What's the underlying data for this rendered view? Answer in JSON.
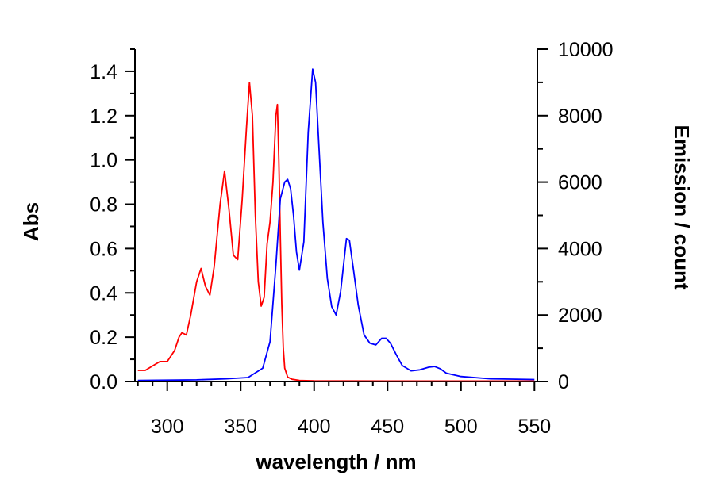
{
  "chart_data": {
    "type": "line",
    "xlabel": "wavelength / nm",
    "ylabel_left": "Abs",
    "ylabel_right": "Emission / count",
    "xlim": [
      278,
      552
    ],
    "ylim_left": [
      0,
      1.5
    ],
    "ylim_right": [
      0,
      10000
    ],
    "x_ticks": [
      "300",
      "350",
      "400",
      "450",
      "500",
      "550"
    ],
    "y_left_ticks": [
      "0.0",
      "0.2",
      "0.4",
      "0.6",
      "0.8",
      "1.0",
      "1.2",
      "1.4"
    ],
    "y_right_ticks": [
      "0",
      "2000",
      "4000",
      "6000",
      "8000",
      "10000"
    ],
    "grid": false,
    "series": [
      {
        "axis": "left",
        "color": "#ff0000",
        "x": [
          280,
          285,
          290,
          295,
          300,
          305,
          308,
          310,
          313,
          316,
          320,
          323,
          326,
          329,
          332,
          336,
          339,
          342,
          345,
          348,
          351,
          354,
          356,
          358,
          360,
          362,
          364,
          366,
          368,
          370,
          372,
          374,
          375,
          376,
          377,
          378,
          379,
          380,
          382,
          385,
          390,
          400,
          450,
          500,
          550
        ],
        "y": [
          0.05,
          0.05,
          0.07,
          0.09,
          0.09,
          0.14,
          0.2,
          0.22,
          0.21,
          0.3,
          0.45,
          0.51,
          0.43,
          0.39,
          0.52,
          0.8,
          0.95,
          0.78,
          0.57,
          0.55,
          0.82,
          1.15,
          1.35,
          1.2,
          0.75,
          0.45,
          0.34,
          0.38,
          0.62,
          0.72,
          0.9,
          1.2,
          1.25,
          1.0,
          0.65,
          0.35,
          0.15,
          0.06,
          0.02,
          0.01,
          0.005,
          0.003,
          0.002,
          0.002,
          0.002
        ]
      },
      {
        "axis": "right",
        "color": "#0000ff",
        "x": [
          280,
          300,
          320,
          340,
          355,
          365,
          370,
          374,
          377,
          380,
          382,
          384,
          386,
          388,
          390,
          393,
          396,
          399,
          401,
          403,
          406,
          409,
          412,
          415,
          418,
          422,
          424,
          427,
          430,
          434,
          438,
          442,
          446,
          449,
          452,
          456,
          460,
          466,
          472,
          478,
          482,
          486,
          490,
          500,
          520,
          550
        ],
        "y": [
          30,
          40,
          50,
          80,
          120,
          400,
          1200,
          3500,
          5500,
          6000,
          6080,
          5800,
          5000,
          3900,
          3350,
          4200,
          7500,
          9400,
          9000,
          7300,
          4800,
          3100,
          2250,
          2000,
          2700,
          4300,
          4250,
          3300,
          2300,
          1400,
          1150,
          1100,
          1300,
          1300,
          1150,
          800,
          480,
          320,
          350,
          430,
          450,
          380,
          250,
          150,
          80,
          60
        ]
      }
    ]
  }
}
